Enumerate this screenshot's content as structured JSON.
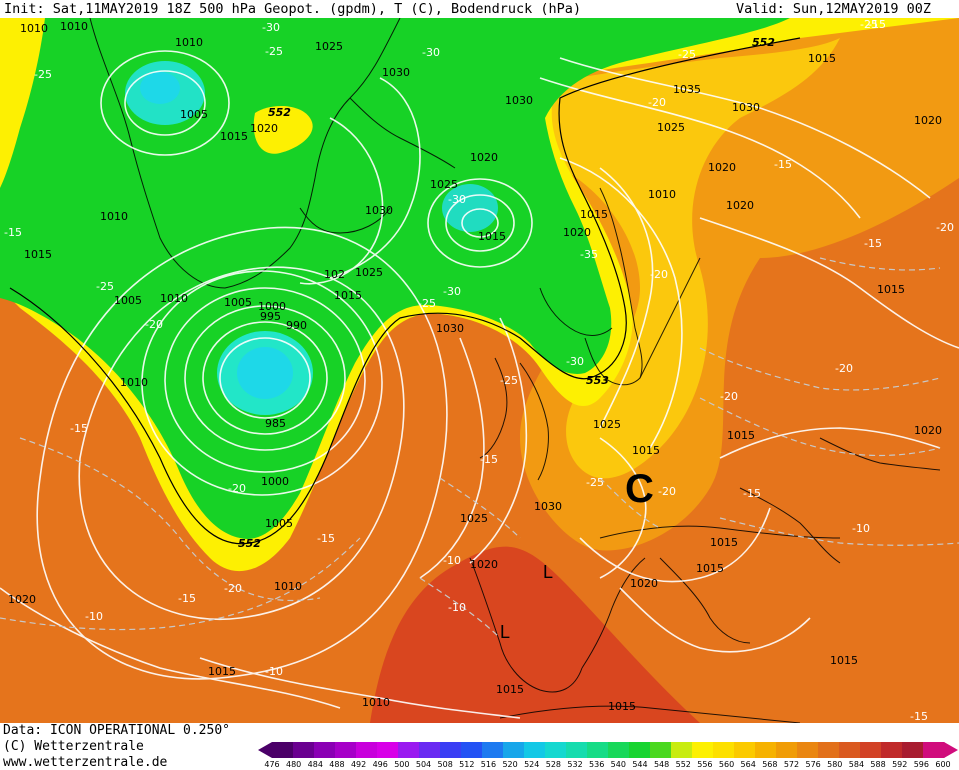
{
  "header": {
    "init": "Init: Sat,11MAY2019 18Z 500 hPa Geopot. (gpdm), T (C), Bodendruck (hPa)",
    "valid": "Valid: Sun,12MAY2019 00Z"
  },
  "footer": {
    "data_line": "Data: ICON OPERATIONAL 0.250°",
    "copyright": "(C) Wetterzentrale",
    "url": "www.wetterzentrale.de"
  },
  "colors": {
    "green": "#15d325",
    "cyan": "#22e3dd",
    "yellow": "#fdf002",
    "orange": "#ef8c14",
    "red": "#d23c22"
  },
  "scale": {
    "values": [
      "476",
      "480",
      "484",
      "488",
      "492",
      "496",
      "500",
      "504",
      "508",
      "512",
      "516",
      "520",
      "524",
      "528",
      "532",
      "536",
      "540",
      "544",
      "548",
      "552",
      "556",
      "560",
      "564",
      "568",
      "572",
      "576",
      "580",
      "584",
      "588",
      "592",
      "596",
      "600"
    ],
    "colors": [
      "#4b0068",
      "#6a0090",
      "#8a00b4",
      "#a600c8",
      "#c800dc",
      "#d800e8",
      "#9a1af0",
      "#6a2af2",
      "#3a3ef4",
      "#2352f4",
      "#1d7af0",
      "#17a6ea",
      "#13c8e6",
      "#15d8d0",
      "#16dcae",
      "#16dc86",
      "#18d85a",
      "#18d430",
      "#4ad820",
      "#c8ec10",
      "#fdf002",
      "#fde000",
      "#fbca00",
      "#f6b200",
      "#f09c06",
      "#ea8610",
      "#e2701a",
      "#da5a20",
      "#d24226",
      "#c02a2a",
      "#a81c30",
      "#d00c7c"
    ]
  },
  "map": {
    "pressure_labels": [
      "1010",
      "1010",
      "1025",
      "1030",
      "1005",
      "1015",
      "1020",
      "552",
      "552",
      "1030",
      "1035",
      "1030",
      "1025",
      "1020",
      "1020",
      "1025",
      "1030",
      "1015",
      "1020",
      "1010",
      "1020",
      "1015",
      "1010",
      "1015",
      "1005",
      "1010",
      "1005",
      "1000",
      "995",
      "990",
      "1025",
      "1015",
      "102",
      "1030",
      "553",
      "1025",
      "1015",
      "1015",
      "1010",
      "1020",
      "1015",
      "985",
      "1000",
      "1030",
      "1025",
      "1005",
      "552",
      "1020",
      "1020",
      "1015",
      "1015",
      "1020",
      "1010",
      "1015",
      "1015",
      "1015",
      "1010",
      "1015",
      "1020",
      "1015",
      "1010",
      "1015",
      "1015",
      "1025"
    ],
    "temp_labels": [
      "-30",
      "-25",
      "-25",
      "-30",
      "-25",
      "-20",
      "-30",
      "-25",
      "-15",
      "-25",
      "-20",
      "-30",
      "-25",
      "-35",
      "-30",
      "-20",
      "-25",
      "-15",
      "-20",
      "-20",
      "-15",
      "-15",
      "-20",
      "-15",
      "-15",
      "-10",
      "-20",
      "-15",
      "-15",
      "-25",
      "-20",
      "-15",
      "-10",
      "-10",
      "-10",
      "-10",
      "-20",
      "-15",
      "-10",
      "-10",
      "-10",
      "-15",
      "-15",
      "-10",
      "-15",
      "-10"
    ],
    "letters": [
      "C",
      "L",
      "L"
    ]
  }
}
